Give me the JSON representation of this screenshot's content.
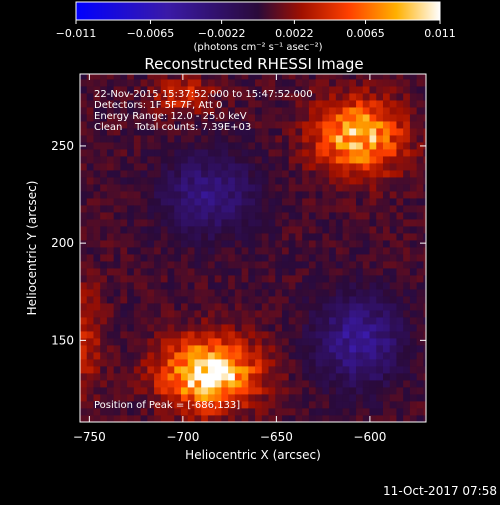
{
  "chart_data": {
    "type": "heatmap",
    "title": "Reconstructed RHESSI Image",
    "xlabel": "Heliocentric X (arcsec)",
    "ylabel": "Heliocentric Y (arcsec)",
    "xlim": [
      -755,
      -570
    ],
    "ylim": [
      108,
      287
    ],
    "x_ticks": [
      -750,
      -700,
      -650,
      -600
    ],
    "x_tick_labels": [
      "−750",
      "−700",
      "−650",
      "−600"
    ],
    "y_ticks": [
      150,
      200,
      250
    ],
    "y_tick_labels": [
      "150",
      "200",
      "250"
    ],
    "colorbar": {
      "min": -0.011,
      "max": 0.011,
      "ticks": [
        -0.011,
        -0.0065,
        -0.0022,
        0.0022,
        0.0065,
        0.011
      ],
      "tick_labels": [
        "−0.011",
        "−0.0065",
        "−0.0022",
        "0.0022",
        "0.0065",
        "0.011"
      ],
      "units": "(photons cm⁻² s⁻¹ asec⁻²)"
    },
    "annotations": [
      "22-Nov-2015 15:37:52.000 to 15:47:52.000",
      "Detectors: 1F 5F 7F, Att 0",
      "Energy Range: 12.0 - 25.0 keV",
      "Clean    Total counts: 7.39E+03"
    ],
    "peak_label": "Position of Peak = [-686,133]",
    "sources": [
      {
        "x": -686,
        "y": 133,
        "peak": 0.0105,
        "sx": 24,
        "sy": 17
      },
      {
        "x": -606,
        "y": 255,
        "peak": 0.0085,
        "sx": 22,
        "sy": 18
      },
      {
        "x": -700,
        "y": 276,
        "peak": 0.0035,
        "sx": 15,
        "sy": 9
      },
      {
        "x": -752,
        "y": 152,
        "peak": 0.003,
        "sx": 9,
        "sy": 25
      }
    ],
    "negative_regions": [
      {
        "x": -686,
        "y": 225,
        "peak": -0.004,
        "sx": 24,
        "sy": 20
      },
      {
        "x": -606,
        "y": 150,
        "peak": -0.005,
        "sx": 22,
        "sy": 22
      }
    ]
  },
  "footer": {
    "date": "11-Oct-2017 07:58"
  }
}
